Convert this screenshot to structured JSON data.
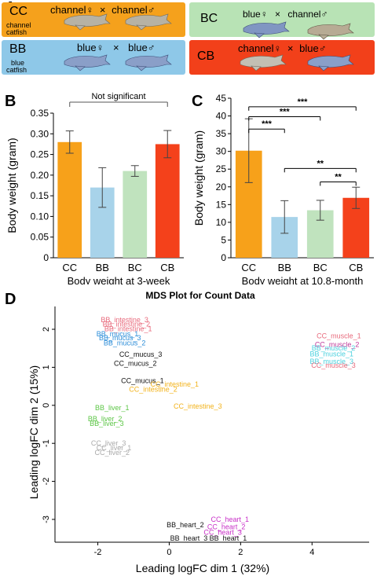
{
  "panel_labels": [
    "A",
    "B",
    "C",
    "D"
  ],
  "crosses": [
    {
      "code": "CC",
      "sub": [
        "channel",
        "catfish"
      ],
      "female": "channel",
      "male": "channel",
      "color": "#f5a11c"
    },
    {
      "code": "BC",
      "sub": [],
      "female": "blue",
      "male": "channel",
      "color": "#b8e3b5"
    },
    {
      "code": "BB",
      "sub": [
        "blue",
        "catfish"
      ],
      "female": "blue",
      "male": "blue",
      "color": "#8ec8e8"
    },
    {
      "code": "CB",
      "sub": [],
      "female": "channel",
      "male": "blue",
      "color": "#f2401a"
    }
  ],
  "symbols": {
    "female": "♀",
    "male": "♂",
    "cross": "×"
  },
  "chart_data": [
    {
      "id": "B",
      "type": "bar",
      "categories": [
        "CC",
        "BB",
        "BC",
        "CB"
      ],
      "values": [
        0.28,
        0.17,
        0.21,
        0.275
      ],
      "errors": [
        0.027,
        0.048,
        0.013,
        0.033
      ],
      "colors": [
        "#f7a11a",
        "#a8d3ea",
        "#c0e3be",
        "#f4411b"
      ],
      "xlabel": "Body weight at 3-week",
      "ylabel": "Body weight (gram)",
      "ylim": [
        0,
        0.35
      ],
      "yticks": [
        "0",
        "0.05",
        "0.10",
        "0.15",
        "0.20",
        "0.25",
        "0.30",
        "0.35"
      ],
      "annotation": "Not significant"
    },
    {
      "id": "C",
      "type": "bar",
      "categories": [
        "CC",
        "BB",
        "BC",
        "CB"
      ],
      "values": [
        30.2,
        11.5,
        13.4,
        16.9
      ],
      "errors": [
        9.0,
        4.6,
        2.8,
        3.0
      ],
      "colors": [
        "#f7a11a",
        "#a8d3ea",
        "#c0e3be",
        "#f4411b"
      ],
      "xlabel": "Body weight at 10.8-month",
      "ylabel": "Body weight (gram)",
      "ylim": [
        0,
        45
      ],
      "yticks": [
        "0",
        "5",
        "10",
        "15",
        "20",
        "25",
        "30",
        "35",
        "40",
        "45"
      ],
      "significance": [
        {
          "from": "CC",
          "to": "BB",
          "y": 36.3,
          "label": "***"
        },
        {
          "from": "CC",
          "to": "BC",
          "y": 39.8,
          "label": "***"
        },
        {
          "from": "CC",
          "to": "CB",
          "y": 42.6,
          "label": "***"
        },
        {
          "from": "BB",
          "to": "CB",
          "y": 25.2,
          "label": "**"
        },
        {
          "from": "BC",
          "to": "CB",
          "y": 21.4,
          "label": "**"
        }
      ]
    },
    {
      "id": "D",
      "type": "scatter",
      "title": "MDS Plot for Count Data",
      "xlabel": "Leading logFC dim 1 (32%)",
      "ylabel": "Leading logFC dim 2 (15%)",
      "xlim": [
        -3.2,
        5.6
      ],
      "ylim": [
        -3.6,
        2.6
      ],
      "xticks": [
        -2,
        0,
        2,
        4
      ],
      "yticks": [
        -3,
        -2,
        -1,
        0,
        1,
        2
      ],
      "points": [
        {
          "label": "BB_intestine_3",
          "x": -1.25,
          "y": 2.25,
          "color": "#e86a7c"
        },
        {
          "label": "BB_intestine_2",
          "x": -1.2,
          "y": 2.13,
          "color": "#e86a7c"
        },
        {
          "label": "BB_intestine_1",
          "x": -1.15,
          "y": 2.01,
          "color": "#e86a7c"
        },
        {
          "label": "BB_mucus_1",
          "x": -1.45,
          "y": 1.88,
          "color": "#2b8dd8"
        },
        {
          "label": "BB_mucus_3",
          "x": -1.38,
          "y": 1.77,
          "color": "#2b8dd8"
        },
        {
          "label": "BB_mucus_2",
          "x": -1.25,
          "y": 1.64,
          "color": "#2b8dd8"
        },
        {
          "label": "CC_mucus_3",
          "x": -0.8,
          "y": 1.34,
          "color": "#111111"
        },
        {
          "label": "CC_mucus_2",
          "x": -0.95,
          "y": 1.1,
          "color": "#111111"
        },
        {
          "label": "CC_mucus_1",
          "x": -0.75,
          "y": 0.65,
          "color": "#111111"
        },
        {
          "label": "CC_intestine_1",
          "x": 0.15,
          "y": 0.55,
          "color": "#f2b21a"
        },
        {
          "label": "CC_intestine_2",
          "x": -0.45,
          "y": 0.42,
          "color": "#f2b21a"
        },
        {
          "label": "CC_intestine_3",
          "x": 0.8,
          "y": -0.02,
          "color": "#f2b21a"
        },
        {
          "label": "BB_liver_1",
          "x": -1.6,
          "y": -0.07,
          "color": "#5cc646"
        },
        {
          "label": "BB_liver_2",
          "x": -1.8,
          "y": -0.36,
          "color": "#5cc646"
        },
        {
          "label": "BB_liver_3",
          "x": -1.75,
          "y": -0.48,
          "color": "#5cc646"
        },
        {
          "label": "CC_liver_3",
          "x": -1.7,
          "y": -1.0,
          "color": "#aaaaaa"
        },
        {
          "label": "CC_liver_1",
          "x": -1.55,
          "y": -1.12,
          "color": "#aaaaaa"
        },
        {
          "label": "CC_liver_2",
          "x": -1.6,
          "y": -1.24,
          "color": "#aaaaaa"
        },
        {
          "label": "CC_muscle_1",
          "x": 4.75,
          "y": 1.83,
          "color": "#e86a7c"
        },
        {
          "label": "CC_muscle_2",
          "x": 4.7,
          "y": 1.6,
          "color": "#c0399a"
        },
        {
          "label": "BB_muscle_2",
          "x": 4.6,
          "y": 1.5,
          "color": "#4ad1de"
        },
        {
          "label": "BB_muscle_1",
          "x": 4.55,
          "y": 1.35,
          "color": "#4ad1de"
        },
        {
          "label": "BB_muscle_3",
          "x": 4.55,
          "y": 1.15,
          "color": "#4ad1de"
        },
        {
          "label": "CC_muscle_3",
          "x": 4.6,
          "y": 1.05,
          "color": "#e86a7c"
        },
        {
          "label": "CC_heart_1",
          "x": 1.7,
          "y": -3.0,
          "color": "#c82fc7"
        },
        {
          "label": "BB_heart_2",
          "x": 0.45,
          "y": -3.15,
          "color": "#111111"
        },
        {
          "label": "CC_heart_2",
          "x": 1.6,
          "y": -3.2,
          "color": "#c82fc7"
        },
        {
          "label": "CC_heart_3",
          "x": 1.5,
          "y": -3.34,
          "color": "#c82fc7"
        },
        {
          "label": "BB_heart_3",
          "x": 0.55,
          "y": -3.5,
          "color": "#111111"
        },
        {
          "label": "BB_heart_1",
          "x": 1.65,
          "y": -3.5,
          "color": "#111111"
        }
      ]
    }
  ]
}
